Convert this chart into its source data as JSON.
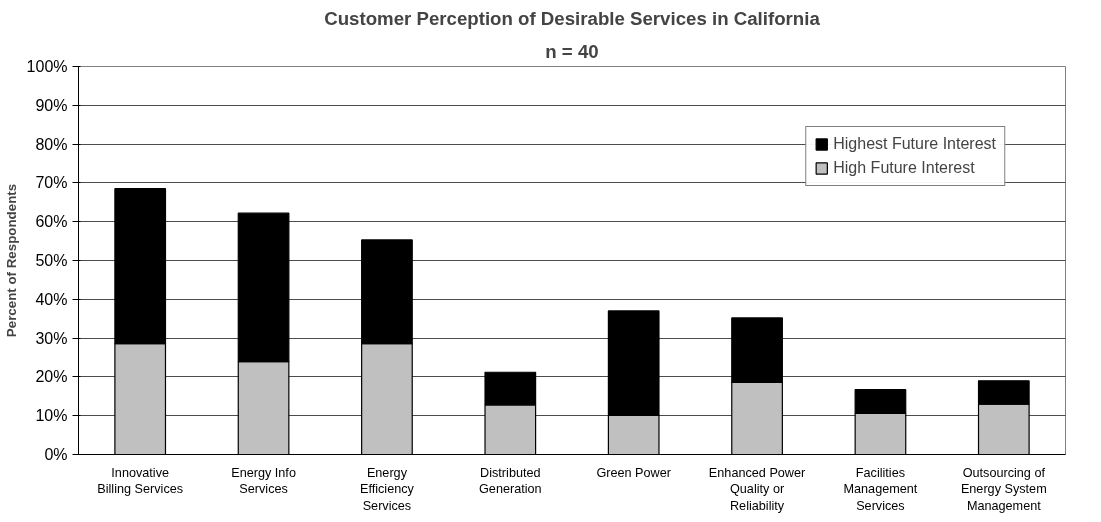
{
  "chart_data": {
    "type": "bar",
    "title": "Customer Perception of Desirable Services in California",
    "subtitle": "n = 40",
    "ylabel": "Percent of Respondents",
    "categories": [
      "Innovative Billing Services",
      "Energy Info Services",
      "Energy Efficiency Services",
      "Distributed Generation",
      "Green Power",
      "Enhanced Power Quality or Reliability",
      "Facilities Management Services",
      "Outsourcing of Energy System Management"
    ],
    "stacked": true,
    "series": [
      {
        "name": "High Future Interest",
        "color": "#c0c0c0",
        "values": [
          28.6,
          23.9,
          28.6,
          12.8,
          10.1,
          18.6,
          10.6,
          13.0
        ]
      },
      {
        "name": "Highest Future Interest",
        "color": "#000000",
        "values": [
          39.9,
          38.3,
          26.7,
          8.4,
          26.9,
          16.6,
          6.1,
          6.0
        ]
      }
    ],
    "ylim": [
      0,
      100
    ],
    "yticks": [
      {
        "value": 0,
        "label": "0%"
      },
      {
        "value": 10,
        "label": "10%"
      },
      {
        "value": 20,
        "label": "20%"
      },
      {
        "value": 30,
        "label": "30%"
      },
      {
        "value": 40,
        "label": "40%"
      },
      {
        "value": 50,
        "label": "50%"
      },
      {
        "value": 60,
        "label": "60%"
      },
      {
        "value": 70,
        "label": "70%"
      },
      {
        "value": 80,
        "label": "80%"
      },
      {
        "value": 90,
        "label": "90%"
      },
      {
        "value": 100,
        "label": "100%"
      }
    ],
    "grid": "y",
    "legend": "top right"
  }
}
